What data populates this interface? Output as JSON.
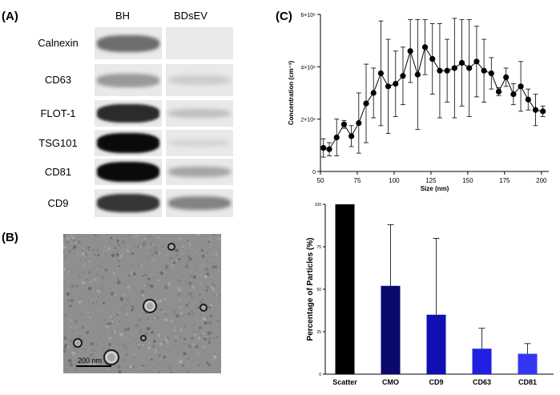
{
  "panels": {
    "a": "(A)",
    "b": "(B)",
    "c": "(C)"
  },
  "western_blot": {
    "columns": [
      "BH",
      "BDsEV"
    ],
    "rows": [
      {
        "label": "Calnexin",
        "bh": 0.55,
        "bdsev": 0.0
      },
      {
        "label": "CD63",
        "bh": 0.35,
        "bdsev": 0.12
      },
      {
        "label": "FLOT-1",
        "bh": 0.85,
        "bdsev": 0.18
      },
      {
        "label": "TSG101",
        "bh": 1.0,
        "bdsev": 0.08
      },
      {
        "label": "CD81",
        "bh": 1.0,
        "bdsev": 0.3
      },
      {
        "label": "CD9",
        "bh": 0.8,
        "bdsev": 0.45
      }
    ]
  },
  "tem": {
    "scale_bar_label": "200 nm"
  },
  "chart_data": [
    {
      "type": "line",
      "xlabel": "Size (nm)",
      "ylabel": "Concentration (cm⁻³)",
      "xlim": [
        50,
        205
      ],
      "ylim": [
        0,
        6000000
      ],
      "x_ticks": [
        50,
        75,
        100,
        125,
        150,
        175,
        200
      ],
      "y_ticks": [
        {
          "value": 0,
          "label": "0"
        },
        {
          "value": 2000000,
          "label": "2×10⁶"
        },
        {
          "value": 4000000,
          "label": "4×10⁶"
        },
        {
          "value": 6000000,
          "label": "6×10⁶"
        }
      ],
      "color": "#000000",
      "x": [
        52,
        56,
        61,
        66,
        71,
        76,
        81,
        86,
        91,
        96,
        101,
        106,
        111,
        116,
        121,
        126,
        131,
        136,
        141,
        146,
        151,
        156,
        161,
        166,
        171,
        176,
        181,
        186,
        191,
        196,
        201
      ],
      "y": [
        900000,
        850000,
        1300000,
        1800000,
        1350000,
        1850000,
        2600000,
        3000000,
        3750000,
        3250000,
        3350000,
        3650000,
        4600000,
        3700000,
        4750000,
        4300000,
        3850000,
        3850000,
        3950000,
        4150000,
        3950000,
        4200000,
        3850000,
        3750000,
        3050000,
        3600000,
        2950000,
        3250000,
        2750000,
        2350000,
        2300000
      ],
      "err": [
        350000,
        250000,
        700000,
        150000,
        400000,
        1150000,
        1500000,
        950000,
        2000000,
        1800000,
        1250000,
        1100000,
        1200000,
        2100000,
        1050000,
        1350000,
        1800000,
        1200000,
        1900000,
        1650000,
        1850000,
        1350000,
        1200000,
        600000,
        150000,
        350000,
        400000,
        950000,
        400000,
        600000,
        200000
      ]
    },
    {
      "type": "bar",
      "categories": [
        "Scatter",
        "CMO",
        "CD9",
        "CD63",
        "CD81"
      ],
      "values": [
        100,
        52,
        35,
        15,
        12
      ],
      "errors": [
        0,
        36,
        45,
        12,
        6
      ],
      "colors": [
        "#000000",
        "#0a0a6e",
        "#1010b0",
        "#2020e0",
        "#3535f5"
      ],
      "ylabel": "Percentage of Particles (%)",
      "ylim": [
        0,
        100
      ],
      "y_ticks": [
        0,
        25,
        50,
        75,
        100
      ]
    }
  ]
}
